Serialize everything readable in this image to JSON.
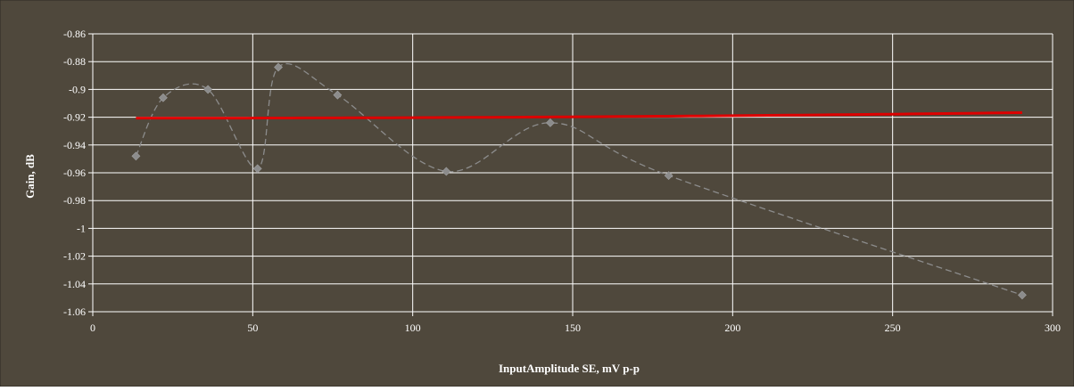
{
  "chart_data": {
    "type": "scatter",
    "title": "",
    "xlabel": "InputAmplitude SE, mV p-p",
    "ylabel": "Gain, dB",
    "xlim": [
      0,
      300
    ],
    "ylim": [
      -1.06,
      -0.86
    ],
    "x_ticks": [
      0,
      50,
      100,
      150,
      200,
      250,
      300
    ],
    "y_ticks": [
      -0.86,
      -0.88,
      -0.9,
      -0.92,
      -0.94,
      -0.96,
      -0.98,
      -1,
      -1.02,
      -1.04,
      -1.06
    ],
    "grid": true,
    "legend": "none",
    "series": [
      {
        "style": "markers with smoothed dashed line",
        "color": "#8c8c8c",
        "x": [
          13.5,
          22,
          36,
          51.5,
          58,
          76.5,
          110.5,
          143,
          180,
          290.5
        ],
        "y": [
          -0.948,
          -0.906,
          -0.9,
          -0.957,
          -0.884,
          -0.904,
          -0.959,
          -0.924,
          -0.962,
          -1.048
        ]
      },
      {
        "style": "solid trendline",
        "color": "#dd0000",
        "x": [
          13.5,
          290.5
        ],
        "polynomial_coefficients": [
          -0.920635,
          -2.12e-06,
          5.5e-08,
          -4e-12
        ]
      }
    ]
  },
  "colors": {
    "background": "#4f483c",
    "gridline": "#ffffff",
    "text": "#ffffff",
    "markers": "#8c8c8c",
    "trendline": "#dd0000"
  }
}
